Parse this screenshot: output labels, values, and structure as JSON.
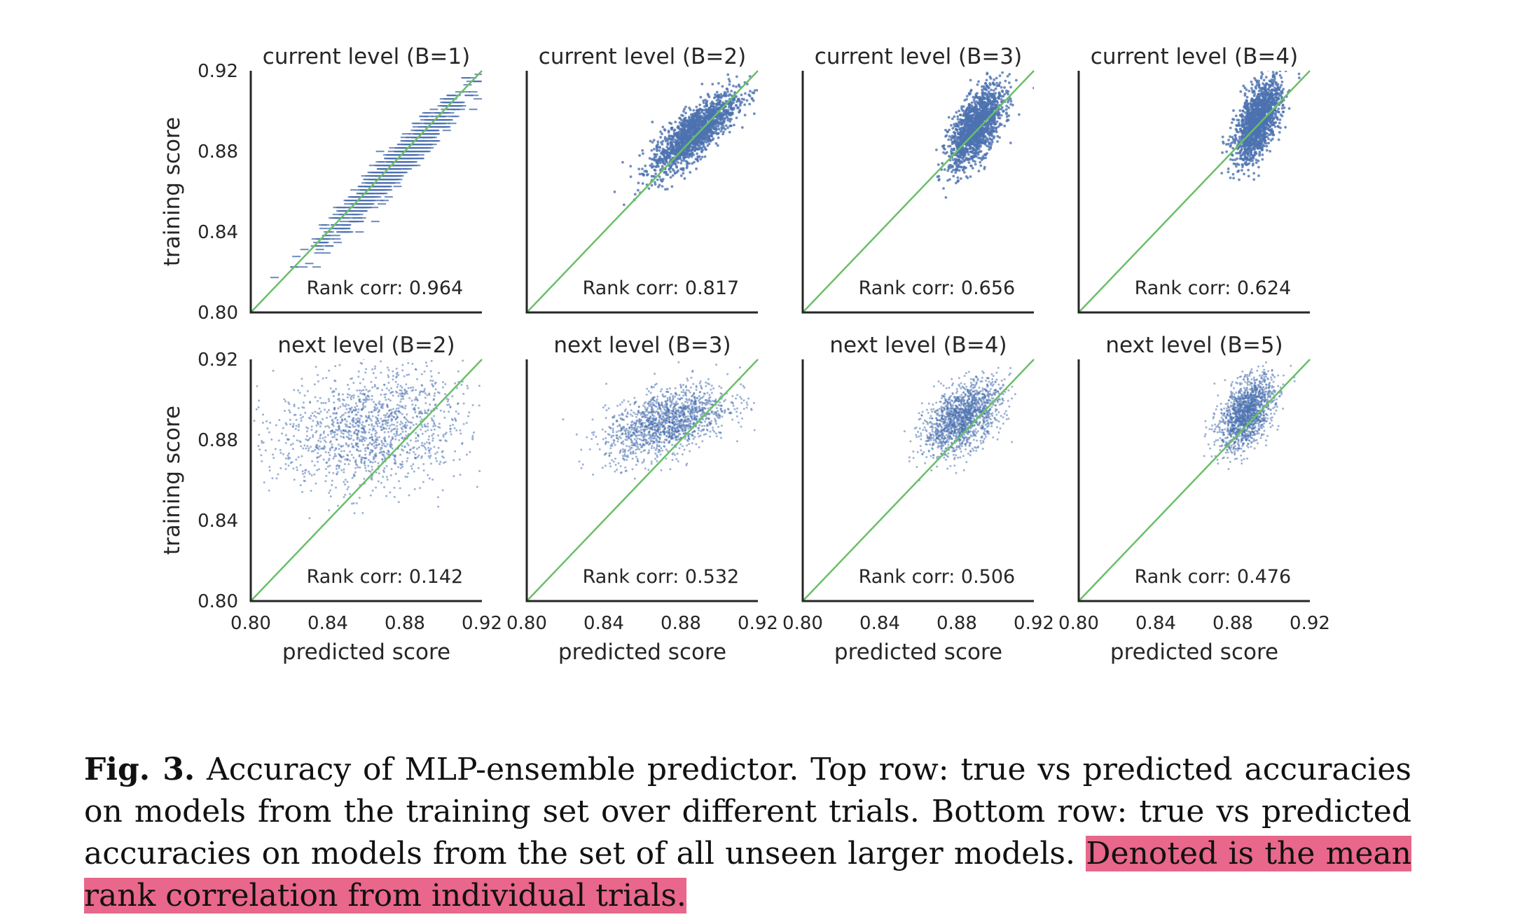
{
  "colors": {
    "points": "#4c72b0",
    "diagonal": "#6abf69",
    "axes": "#262626",
    "highlight": "#e8678a"
  },
  "chart_data": {
    "type": "scatter",
    "xlabel": "predicted score",
    "ylabel": "training score",
    "xlim": [
      0.8,
      0.92
    ],
    "ylim": [
      0.8,
      0.92
    ],
    "ticks": [
      "0.80",
      "0.84",
      "0.88",
      "0.92"
    ],
    "reference_line": "y = x",
    "panels": [
      {
        "title": "current level (B=1)",
        "rank_corr": "Rank corr: 0.964",
        "center": [
          0.875,
          0.873
        ],
        "spread": [
          0.018,
          0.018
        ],
        "corr": 0.97,
        "n": 900
      },
      {
        "title": "current level (B=2)",
        "rank_corr": "Rank corr: 0.817",
        "center": [
          0.887,
          0.889
        ],
        "spread": [
          0.011,
          0.01
        ],
        "corr": 0.8,
        "n": 1600
      },
      {
        "title": "current level (B=3)",
        "rank_corr": "Rank corr: 0.656",
        "center": [
          0.89,
          0.892
        ],
        "spread": [
          0.007,
          0.01
        ],
        "corr": 0.62,
        "n": 1500
      },
      {
        "title": "current level (B=4)",
        "rank_corr": "Rank corr: 0.624",
        "center": [
          0.893,
          0.895
        ],
        "spread": [
          0.006,
          0.01
        ],
        "corr": 0.58,
        "n": 1500
      },
      {
        "title": "next level (B=2)",
        "rank_corr": "Rank corr: 0.142",
        "center": [
          0.862,
          0.885
        ],
        "spread": [
          0.024,
          0.015
        ],
        "corr": 0.15,
        "n": 1400
      },
      {
        "title": "next level (B=3)",
        "rank_corr": "Rank corr: 0.532",
        "center": [
          0.873,
          0.889
        ],
        "spread": [
          0.016,
          0.009
        ],
        "corr": 0.5,
        "n": 1500
      },
      {
        "title": "next level (B=4)",
        "rank_corr": "Rank corr: 0.506",
        "center": [
          0.883,
          0.891
        ],
        "spread": [
          0.01,
          0.009
        ],
        "corr": 0.5,
        "n": 1500
      },
      {
        "title": "next level (B=5)",
        "rank_corr": "Rank corr: 0.476",
        "center": [
          0.887,
          0.893
        ],
        "spread": [
          0.007,
          0.009
        ],
        "corr": 0.48,
        "n": 1500
      }
    ]
  },
  "caption": {
    "label": "Fig. 3.",
    "text": " Accuracy of MLP-ensemble predictor. Top row: true vs predicted accuracies on models from the training set over different trials. Bottom row: true vs predicted accuracies on models from the set of all unseen larger models. ",
    "highlighted": "Denoted is the mean rank correlation from individual trials."
  }
}
